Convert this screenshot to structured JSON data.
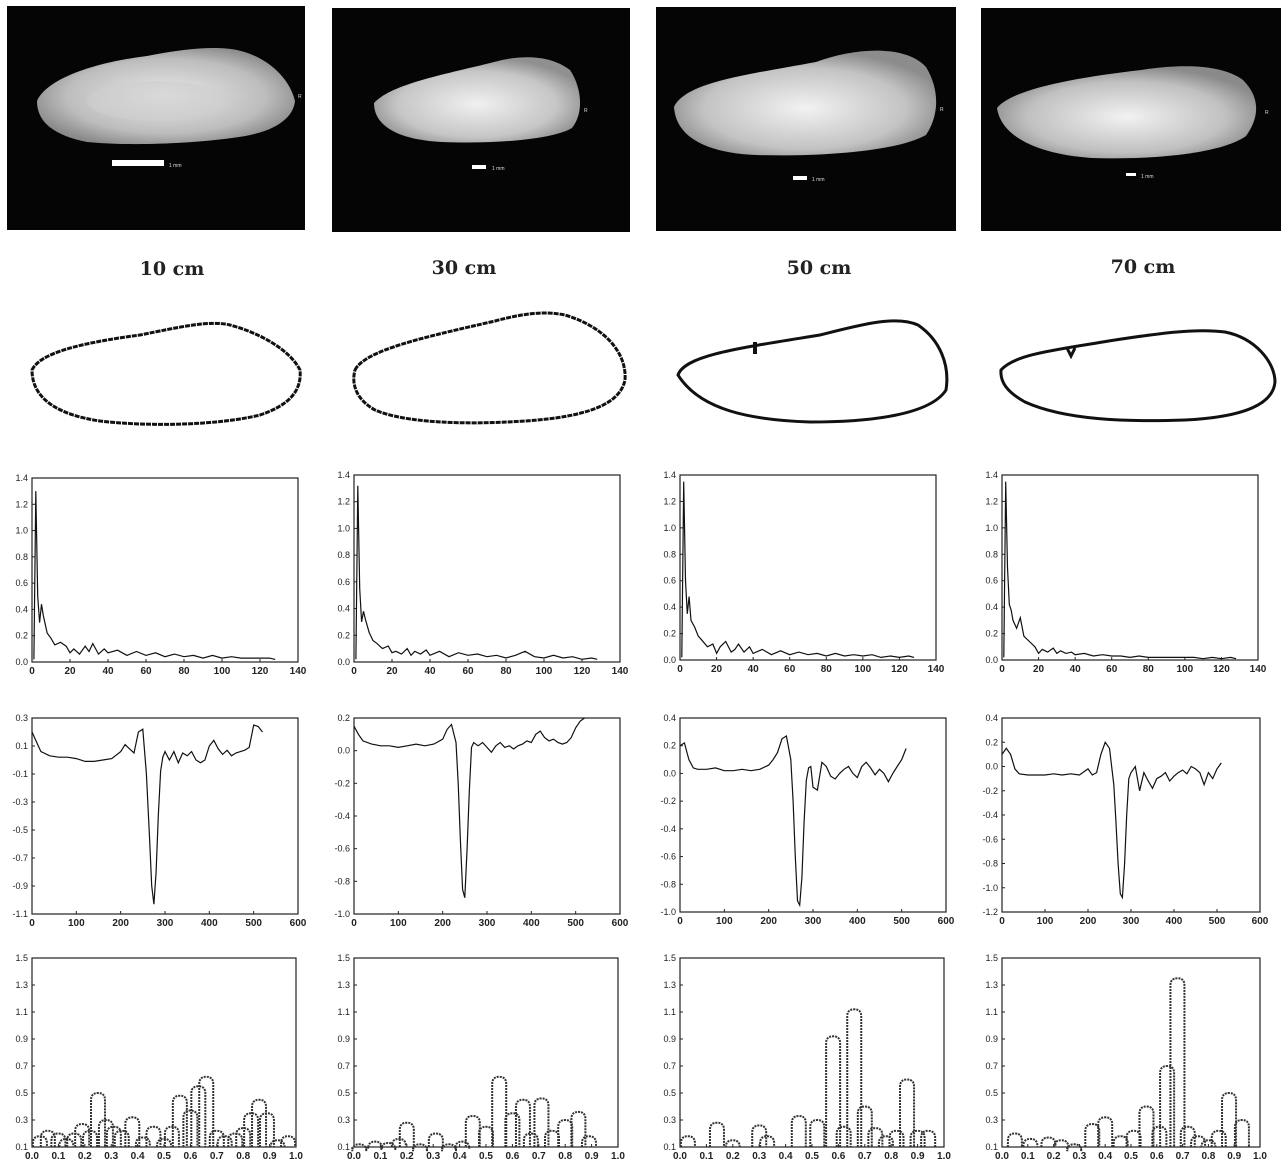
{
  "columns": [
    {
      "label": "10 cm",
      "scalebar": "1 mm",
      "side_mark": "R"
    },
    {
      "label": "30 cm",
      "scalebar": "1 mm",
      "side_mark": "R"
    },
    {
      "label": "50 cm",
      "scalebar": "1 mm",
      "side_mark": "R"
    },
    {
      "label": "70 cm",
      "scalebar": "1 mm",
      "side_mark": "R"
    }
  ],
  "chart_data": [
    {
      "row": "spectrum",
      "column": "10 cm",
      "type": "line",
      "xlim": [
        0,
        140
      ],
      "ylim": [
        0,
        1.4
      ],
      "xticks": [
        "0",
        "20",
        "40",
        "60",
        "80",
        "100",
        "120",
        "140"
      ],
      "yticks": [
        "0.0",
        "0.2",
        "0.4",
        "0.6",
        "0.8",
        "1.0",
        "1.2",
        "1.4"
      ],
      "x": [
        1,
        2,
        3,
        4,
        5,
        6,
        8,
        10,
        12,
        15,
        18,
        20,
        22,
        25,
        28,
        30,
        32,
        35,
        38,
        40,
        45,
        50,
        55,
        60,
        65,
        70,
        75,
        80,
        85,
        90,
        95,
        100,
        105,
        110,
        115,
        120,
        125,
        128
      ],
      "y": [
        0.02,
        1.3,
        0.5,
        0.3,
        0.44,
        0.35,
        0.22,
        0.18,
        0.13,
        0.15,
        0.12,
        0.07,
        0.1,
        0.06,
        0.12,
        0.08,
        0.14,
        0.06,
        0.1,
        0.07,
        0.09,
        0.05,
        0.08,
        0.05,
        0.07,
        0.04,
        0.06,
        0.04,
        0.05,
        0.03,
        0.05,
        0.03,
        0.04,
        0.03,
        0.03,
        0.03,
        0.03,
        0.02
      ]
    },
    {
      "row": "spectrum",
      "column": "30 cm",
      "type": "line",
      "xlim": [
        0,
        140
      ],
      "ylim": [
        0,
        1.4
      ],
      "xticks": [
        "0",
        "20",
        "40",
        "60",
        "80",
        "100",
        "120",
        "140"
      ],
      "yticks": [
        "0.0",
        "0.2",
        "0.4",
        "0.6",
        "0.8",
        "1.0",
        "1.2",
        "1.4"
      ],
      "x": [
        1,
        2,
        3,
        4,
        5,
        6,
        8,
        10,
        12,
        15,
        18,
        20,
        22,
        25,
        28,
        30,
        32,
        35,
        38,
        40,
        45,
        50,
        55,
        60,
        65,
        70,
        75,
        80,
        85,
        90,
        95,
        100,
        105,
        110,
        115,
        120,
        125,
        128
      ],
      "y": [
        0.02,
        1.32,
        0.55,
        0.3,
        0.38,
        0.32,
        0.22,
        0.16,
        0.14,
        0.1,
        0.12,
        0.07,
        0.08,
        0.06,
        0.1,
        0.05,
        0.08,
        0.06,
        0.09,
        0.05,
        0.08,
        0.04,
        0.07,
        0.05,
        0.06,
        0.04,
        0.05,
        0.03,
        0.05,
        0.08,
        0.04,
        0.03,
        0.05,
        0.03,
        0.04,
        0.02,
        0.03,
        0.02
      ]
    },
    {
      "row": "spectrum",
      "column": "50 cm",
      "type": "line",
      "xlim": [
        0,
        140
      ],
      "ylim": [
        0,
        1.4
      ],
      "xticks": [
        "0",
        "20",
        "40",
        "60",
        "80",
        "100",
        "120",
        "140"
      ],
      "yticks": [
        "0.0",
        "0.2",
        "0.4",
        "0.6",
        "0.8",
        "1.0",
        "1.2",
        "1.4"
      ],
      "x": [
        1,
        2,
        3,
        4,
        5,
        6,
        8,
        10,
        12,
        15,
        18,
        20,
        22,
        25,
        28,
        30,
        32,
        35,
        38,
        40,
        45,
        50,
        55,
        60,
        65,
        70,
        75,
        80,
        85,
        90,
        95,
        100,
        105,
        110,
        115,
        120,
        125,
        128
      ],
      "y": [
        0.02,
        1.35,
        0.6,
        0.35,
        0.48,
        0.3,
        0.25,
        0.18,
        0.15,
        0.1,
        0.12,
        0.05,
        0.1,
        0.14,
        0.06,
        0.08,
        0.12,
        0.06,
        0.1,
        0.05,
        0.08,
        0.04,
        0.07,
        0.04,
        0.06,
        0.04,
        0.05,
        0.03,
        0.05,
        0.03,
        0.04,
        0.03,
        0.04,
        0.02,
        0.03,
        0.02,
        0.03,
        0.02
      ]
    },
    {
      "row": "spectrum",
      "column": "70 cm",
      "type": "line",
      "xlim": [
        0,
        140
      ],
      "ylim": [
        0,
        1.4
      ],
      "xticks": [
        "0",
        "20",
        "40",
        "60",
        "80",
        "100",
        "120",
        "140"
      ],
      "yticks": [
        "0.0",
        "0.2",
        "0.4",
        "0.6",
        "0.8",
        "1.0",
        "1.2",
        "1.4"
      ],
      "x": [
        1,
        2,
        3,
        4,
        5,
        6,
        8,
        10,
        12,
        15,
        18,
        20,
        22,
        25,
        28,
        30,
        32,
        35,
        38,
        40,
        45,
        50,
        55,
        60,
        65,
        70,
        75,
        80,
        85,
        90,
        95,
        100,
        105,
        110,
        115,
        120,
        125,
        128
      ],
      "y": [
        0.02,
        1.35,
        0.7,
        0.42,
        0.38,
        0.3,
        0.24,
        0.32,
        0.18,
        0.14,
        0.1,
        0.05,
        0.08,
        0.06,
        0.09,
        0.05,
        0.07,
        0.05,
        0.06,
        0.04,
        0.05,
        0.03,
        0.04,
        0.03,
        0.03,
        0.02,
        0.03,
        0.02,
        0.02,
        0.02,
        0.02,
        0.02,
        0.02,
        0.01,
        0.02,
        0.01,
        0.02,
        0.01
      ]
    },
    {
      "row": "contour_signal",
      "column": "10 cm",
      "type": "line",
      "xlim": [
        0,
        600
      ],
      "ylim": [
        -1.1,
        0.3
      ],
      "xticks": [
        "0",
        "100",
        "200",
        "300",
        "400",
        "500",
        "600"
      ],
      "yticks": [
        "-1.1",
        "-0.9",
        "-0.7",
        "-0.5",
        "-0.3",
        "-0.1",
        "0.1",
        "0.3"
      ],
      "x": [
        0,
        10,
        20,
        40,
        60,
        80,
        100,
        120,
        140,
        160,
        180,
        200,
        210,
        220,
        230,
        240,
        250,
        258,
        265,
        270,
        275,
        280,
        285,
        290,
        295,
        300,
        310,
        320,
        330,
        340,
        350,
        360,
        370,
        380,
        390,
        400,
        410,
        420,
        430,
        440,
        450,
        460,
        470,
        480,
        490,
        500,
        510,
        520
      ],
      "y": [
        0.2,
        0.13,
        0.06,
        0.03,
        0.02,
        0.02,
        0.01,
        -0.01,
        -0.01,
        0.0,
        0.01,
        0.06,
        0.11,
        0.08,
        0.05,
        0.2,
        0.22,
        -0.1,
        -0.55,
        -0.9,
        -1.03,
        -0.8,
        -0.4,
        -0.08,
        0.02,
        0.06,
        0.0,
        0.06,
        -0.02,
        0.05,
        0.03,
        0.06,
        0.0,
        -0.02,
        0.0,
        0.1,
        0.14,
        0.08,
        0.04,
        0.07,
        0.03,
        0.05,
        0.06,
        0.07,
        0.09,
        0.25,
        0.24,
        0.2
      ]
    },
    {
      "row": "contour_signal",
      "column": "30 cm",
      "type": "line",
      "xlim": [
        0,
        600
      ],
      "ylim": [
        -1.0,
        0.2
      ],
      "xticks": [
        "0",
        "100",
        "200",
        "300",
        "400",
        "500",
        "600"
      ],
      "yticks": [
        "-1.0",
        "-0.8",
        "-0.6",
        "-0.4",
        "-0.2",
        "0.0",
        "0.2"
      ],
      "x": [
        0,
        10,
        20,
        40,
        60,
        80,
        100,
        120,
        140,
        160,
        180,
        200,
        210,
        220,
        230,
        235,
        240,
        245,
        250,
        255,
        260,
        265,
        270,
        280,
        290,
        300,
        310,
        320,
        330,
        340,
        350,
        360,
        370,
        380,
        390,
        400,
        410,
        420,
        430,
        440,
        450,
        460,
        470,
        480,
        490,
        500,
        510,
        520
      ],
      "y": [
        0.15,
        0.1,
        0.06,
        0.04,
        0.03,
        0.03,
        0.02,
        0.03,
        0.04,
        0.03,
        0.04,
        0.07,
        0.13,
        0.16,
        0.05,
        -0.2,
        -0.55,
        -0.85,
        -0.9,
        -0.6,
        -0.25,
        0.02,
        0.05,
        0.03,
        0.05,
        0.02,
        -0.01,
        0.03,
        0.05,
        0.02,
        0.03,
        0.01,
        0.03,
        0.04,
        0.06,
        0.05,
        0.1,
        0.12,
        0.08,
        0.06,
        0.07,
        0.05,
        0.04,
        0.05,
        0.08,
        0.14,
        0.18,
        0.2
      ]
    },
    {
      "row": "contour_signal",
      "column": "50 cm",
      "type": "line",
      "xlim": [
        0,
        600
      ],
      "ylim": [
        -1.0,
        0.4
      ],
      "xticks": [
        "0",
        "100",
        "200",
        "300",
        "400",
        "500",
        "600"
      ],
      "yticks": [
        "-1.0",
        "-0.8",
        "-0.6",
        "-0.4",
        "-0.2",
        "0.0",
        "0.2",
        "0.4"
      ],
      "x": [
        0,
        10,
        20,
        30,
        40,
        60,
        80,
        100,
        120,
        140,
        160,
        180,
        200,
        210,
        220,
        230,
        240,
        250,
        255,
        260,
        265,
        270,
        275,
        280,
        285,
        290,
        295,
        300,
        310,
        320,
        330,
        340,
        350,
        360,
        370,
        380,
        390,
        400,
        410,
        420,
        430,
        440,
        450,
        460,
        470,
        480,
        490,
        500,
        510
      ],
      "y": [
        0.2,
        0.22,
        0.1,
        0.04,
        0.03,
        0.03,
        0.04,
        0.02,
        0.02,
        0.03,
        0.02,
        0.03,
        0.06,
        0.1,
        0.15,
        0.25,
        0.27,
        0.1,
        -0.2,
        -0.6,
        -0.92,
        -0.95,
        -0.75,
        -0.35,
        -0.05,
        0.04,
        0.05,
        -0.1,
        -0.12,
        0.08,
        0.05,
        -0.02,
        -0.04,
        0.0,
        0.03,
        0.05,
        0.0,
        -0.03,
        0.05,
        0.08,
        0.04,
        -0.01,
        0.03,
        0.0,
        -0.06,
        0.0,
        0.05,
        0.1,
        0.18
      ]
    },
    {
      "row": "contour_signal",
      "column": "70 cm",
      "type": "line",
      "xlim": [
        0,
        600
      ],
      "ylim": [
        -1.2,
        0.4
      ],
      "xticks": [
        "0",
        "100",
        "200",
        "300",
        "400",
        "500",
        "600"
      ],
      "yticks": [
        "-1.2",
        "-1.0",
        "-0.8",
        "-0.6",
        "-0.4",
        "-0.2",
        "0.0",
        "0.2",
        "0.4"
      ],
      "x": [
        0,
        10,
        20,
        30,
        40,
        60,
        80,
        100,
        120,
        140,
        160,
        180,
        200,
        210,
        220,
        230,
        240,
        250,
        260,
        265,
        270,
        275,
        280,
        285,
        290,
        295,
        300,
        310,
        320,
        330,
        340,
        350,
        360,
        370,
        380,
        390,
        400,
        410,
        420,
        430,
        440,
        450,
        460,
        470,
        480,
        490,
        500,
        510
      ],
      "y": [
        0.1,
        0.15,
        0.1,
        -0.02,
        -0.06,
        -0.07,
        -0.07,
        -0.07,
        -0.06,
        -0.07,
        -0.06,
        -0.07,
        -0.02,
        -0.07,
        -0.05,
        0.1,
        0.2,
        0.15,
        -0.15,
        -0.45,
        -0.8,
        -1.05,
        -1.08,
        -0.8,
        -0.4,
        -0.1,
        -0.05,
        0.0,
        -0.2,
        -0.05,
        -0.12,
        -0.18,
        -0.1,
        -0.08,
        -0.05,
        -0.12,
        -0.08,
        -0.05,
        -0.03,
        -0.06,
        0.0,
        -0.02,
        -0.05,
        -0.15,
        -0.05,
        -0.1,
        -0.02,
        0.03
      ]
    },
    {
      "row": "wavelet",
      "column": "10 cm",
      "type": "bar",
      "xlim": [
        0,
        1.0
      ],
      "ylim": [
        0.1,
        1.5
      ],
      "xticks": [
        "0.0",
        "0.1",
        "0.2",
        "0.3",
        "0.4",
        "0.5",
        "0.6",
        "0.7",
        "0.8",
        "0.9",
        "1.0"
      ],
      "yticks": [
        "0.1",
        "0.3",
        "0.5",
        "0.7",
        "0.9",
        "1.1",
        "1.3",
        "1.5"
      ],
      "x": [
        0.03,
        0.06,
        0.1,
        0.13,
        0.16,
        0.19,
        0.22,
        0.25,
        0.28,
        0.31,
        0.34,
        0.38,
        0.42,
        0.46,
        0.5,
        0.53,
        0.56,
        0.6,
        0.63,
        0.66,
        0.7,
        0.73,
        0.77,
        0.8,
        0.83,
        0.86,
        0.89,
        0.93,
        0.97
      ],
      "y": [
        0.18,
        0.22,
        0.2,
        0.16,
        0.2,
        0.27,
        0.22,
        0.5,
        0.3,
        0.25,
        0.22,
        0.32,
        0.17,
        0.25,
        0.16,
        0.25,
        0.48,
        0.37,
        0.55,
        0.62,
        0.22,
        0.18,
        0.2,
        0.24,
        0.35,
        0.45,
        0.35,
        0.15,
        0.18
      ]
    },
    {
      "row": "wavelet",
      "column": "30 cm",
      "type": "bar",
      "xlim": [
        0,
        1.0
      ],
      "ylim": [
        0.1,
        1.5
      ],
      "xticks": [
        "0.0",
        "0.1",
        "0.2",
        "0.3",
        "0.4",
        "0.5",
        "0.6",
        "0.7",
        "0.8",
        "0.9",
        "1.0"
      ],
      "yticks": [
        "0.1",
        "0.3",
        "0.5",
        "0.7",
        "0.9",
        "1.1",
        "1.3",
        "1.5"
      ],
      "x": [
        0.02,
        0.08,
        0.13,
        0.17,
        0.2,
        0.25,
        0.31,
        0.36,
        0.41,
        0.45,
        0.5,
        0.55,
        0.6,
        0.64,
        0.67,
        0.71,
        0.75,
        0.8,
        0.85,
        0.89
      ],
      "y": [
        0.12,
        0.14,
        0.13,
        0.16,
        0.28,
        0.12,
        0.2,
        0.12,
        0.14,
        0.33,
        0.25,
        0.62,
        0.35,
        0.45,
        0.2,
        0.46,
        0.22,
        0.3,
        0.36,
        0.18
      ]
    },
    {
      "row": "wavelet",
      "column": "50 cm",
      "type": "bar",
      "xlim": [
        0,
        1.0
      ],
      "ylim": [
        0.1,
        1.5
      ],
      "xticks": [
        "0.0",
        "0.1",
        "0.2",
        "0.3",
        "0.4",
        "0.5",
        "0.6",
        "0.7",
        "0.8",
        "0.9",
        "1.0"
      ],
      "yticks": [
        "0.1",
        "0.3",
        "0.5",
        "0.7",
        "0.9",
        "1.1",
        "1.3",
        "1.5"
      ],
      "x": [
        0.03,
        0.14,
        0.2,
        0.3,
        0.33,
        0.45,
        0.52,
        0.58,
        0.62,
        0.66,
        0.7,
        0.74,
        0.78,
        0.82,
        0.86,
        0.9,
        0.94
      ],
      "y": [
        0.18,
        0.28,
        0.15,
        0.26,
        0.18,
        0.33,
        0.3,
        0.92,
        0.25,
        1.12,
        0.4,
        0.24,
        0.18,
        0.22,
        0.6,
        0.22,
        0.22
      ]
    },
    {
      "row": "wavelet",
      "column": "70 cm",
      "type": "bar",
      "xlim": [
        0,
        1.0
      ],
      "ylim": [
        0.1,
        1.5
      ],
      "xticks": [
        "0.0",
        "0.1",
        "0.2",
        "0.3",
        "0.4",
        "0.5",
        "0.6",
        "0.7",
        "0.8",
        "0.9",
        "1.0"
      ],
      "yticks": [
        "0.1",
        "0.3",
        "0.5",
        "0.7",
        "0.9",
        "1.1",
        "1.3",
        "1.5"
      ],
      "x": [
        0.05,
        0.11,
        0.18,
        0.23,
        0.28,
        0.35,
        0.4,
        0.46,
        0.51,
        0.56,
        0.61,
        0.64,
        0.68,
        0.72,
        0.76,
        0.8,
        0.84,
        0.88,
        0.93
      ],
      "y": [
        0.2,
        0.16,
        0.17,
        0.15,
        0.12,
        0.27,
        0.32,
        0.18,
        0.22,
        0.4,
        0.25,
        0.7,
        1.35,
        0.25,
        0.18,
        0.15,
        0.22,
        0.5,
        0.3
      ]
    }
  ]
}
